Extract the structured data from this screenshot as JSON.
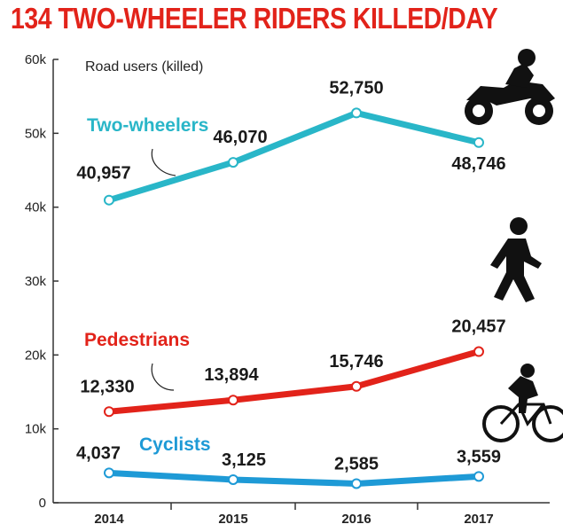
{
  "chart_data": {
    "type": "line",
    "title": "134 TWO-WHEELER RIDERS KILLED/DAY",
    "subtitle": "Road users (killed)",
    "x": [
      "2014",
      "2015",
      "2016",
      "2017"
    ],
    "ylim": [
      0,
      60000
    ],
    "yticks": [
      0,
      10000,
      20000,
      30000,
      40000,
      50000,
      60000
    ],
    "ytick_labels": [
      "0",
      "10k",
      "20k",
      "30k",
      "40k",
      "50k",
      "60k"
    ],
    "grid": false,
    "series": [
      {
        "name": "Two-wheelers",
        "color": "#29b6c8",
        "values": [
          40957,
          46070,
          52750,
          48746
        ],
        "labels": [
          "40,957",
          "46,070",
          "52,750",
          "48,746"
        ]
      },
      {
        "name": "Pedestrians",
        "color": "#e2231a",
        "values": [
          12330,
          13894,
          15746,
          20457
        ],
        "labels": [
          "12,330",
          "13,894",
          "15,746",
          "20,457"
        ]
      },
      {
        "name": "Cyclists",
        "color": "#1e9ad6",
        "values": [
          4037,
          3125,
          2585,
          3559
        ],
        "labels": [
          "4,037",
          "3,125",
          "2,585",
          "3,559"
        ]
      }
    ],
    "icons": [
      "motorcycle-rider-icon",
      "pedestrian-icon",
      "cyclist-icon"
    ]
  }
}
